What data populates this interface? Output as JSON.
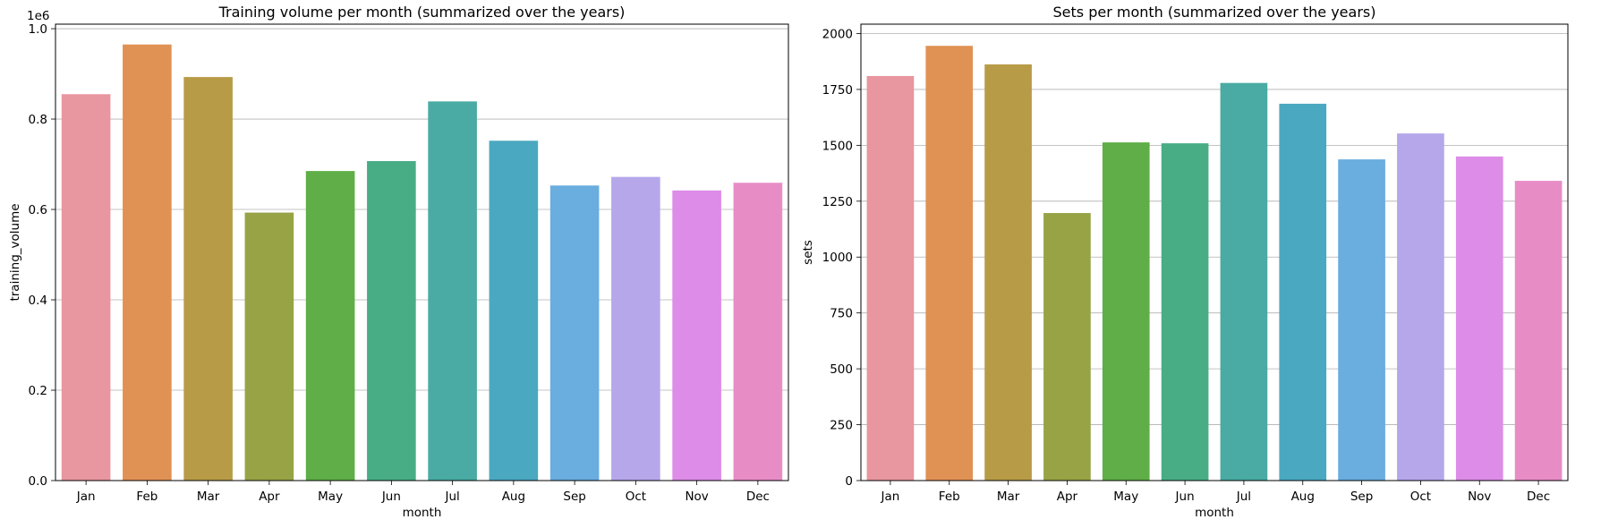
{
  "colors": [
    "#e8969f",
    "#e09154",
    "#b79b47",
    "#97a345",
    "#5fae47",
    "#48ad85",
    "#49aba3",
    "#4aa8c0",
    "#6aaddf",
    "#b6a7eb",
    "#dd8ce7",
    "#e88cc6"
  ],
  "chart_data": [
    {
      "type": "bar",
      "title": "Training volume per month (summarized over the years)",
      "xlabel": "month",
      "ylabel": "training_volume",
      "offset_text": "1e6",
      "categories": [
        "Jan",
        "Feb",
        "Mar",
        "Apr",
        "May",
        "Jun",
        "Jul",
        "Aug",
        "Sep",
        "Oct",
        "Nov",
        "Dec"
      ],
      "values": [
        855000,
        965000,
        893000,
        593000,
        685000,
        707000,
        839000,
        752000,
        653000,
        672000,
        642000,
        659000
      ],
      "ylim": [
        0,
        1010000
      ],
      "yticks": [
        0,
        200000,
        400000,
        600000,
        800000,
        1000000
      ],
      "ytick_labels": [
        "0.0",
        "0.2",
        "0.4",
        "0.6",
        "0.8",
        "1.0"
      ],
      "grid": "y"
    },
    {
      "type": "bar",
      "title": "Sets per month (summarized over the years)",
      "xlabel": "month",
      "ylabel": "sets",
      "categories": [
        "Jan",
        "Feb",
        "Mar",
        "Apr",
        "May",
        "Jun",
        "Jul",
        "Aug",
        "Sep",
        "Oct",
        "Nov",
        "Dec"
      ],
      "values": [
        1810,
        1945,
        1862,
        1197,
        1513,
        1509,
        1779,
        1686,
        1437,
        1553,
        1450,
        1341
      ],
      "ylim": [
        0,
        2042
      ],
      "yticks": [
        0,
        250,
        500,
        750,
        1000,
        1250,
        1500,
        1750,
        2000
      ],
      "ytick_labels": [
        "0",
        "250",
        "500",
        "750",
        "1000",
        "1250",
        "1500",
        "1750",
        "2000"
      ],
      "grid": "y"
    }
  ]
}
